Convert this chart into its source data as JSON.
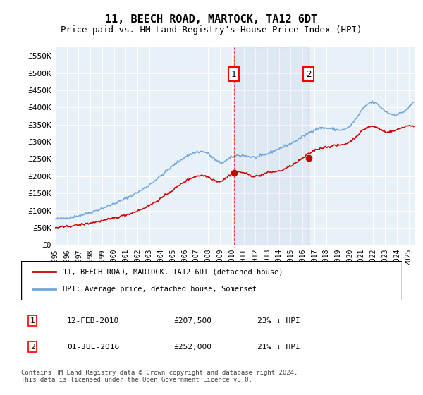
{
  "title": "11, BEECH ROAD, MARTOCK, TA12 6DT",
  "subtitle": "Price paid vs. HM Land Registry's House Price Index (HPI)",
  "ylabel": "",
  "ylim": [
    0,
    575000
  ],
  "yticks": [
    0,
    50000,
    100000,
    150000,
    200000,
    250000,
    300000,
    350000,
    400000,
    450000,
    500000,
    550000
  ],
  "ytick_labels": [
    "£0",
    "£50K",
    "£100K",
    "£150K",
    "£200K",
    "£250K",
    "£300K",
    "£350K",
    "£400K",
    "£450K",
    "£500K",
    "£550K"
  ],
  "hpi_color": "#6fa8dc",
  "price_color": "#cc0000",
  "marker1_date_idx": 15.1,
  "marker1_label": "1",
  "marker1_value": 207500,
  "marker1_date_str": "12-FEB-2010",
  "marker1_hpi_pct": "23%",
  "marker2_date_idx": 21.5,
  "marker2_label": "2",
  "marker2_value": 252000,
  "marker2_date_str": "01-JUL-2016",
  "marker2_hpi_pct": "21%",
  "legend_line1": "11, BEECH ROAD, MARTOCK, TA12 6DT (detached house)",
  "legend_line2": "HPI: Average price, detached house, Somerset",
  "footer": "Contains HM Land Registry data © Crown copyright and database right 2024.\nThis data is licensed under the Open Government Licence v3.0.",
  "background_color": "#ffffff",
  "plot_bg_color": "#e8f0f8"
}
